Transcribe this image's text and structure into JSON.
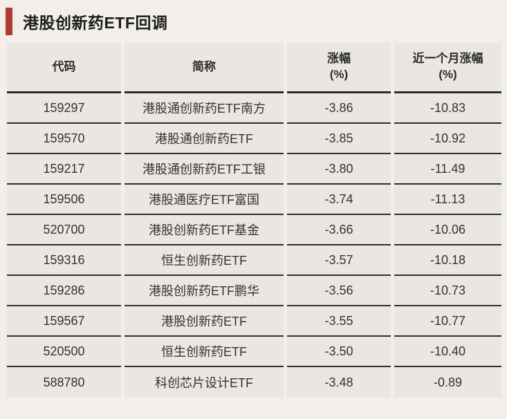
{
  "accent_color": "#b23a32",
  "chart_data": {
    "type": "table",
    "title": "港股创新药ETF回调",
    "columns": [
      "代码",
      "简称",
      "涨幅\n(%)",
      "近一个月涨幅\n(%)"
    ],
    "rows": [
      {
        "code": "159297",
        "name": "港股通创新药ETF南方",
        "change_pct": "-3.86",
        "monthly_change_pct": "-10.83"
      },
      {
        "code": "159570",
        "name": "港股通创新药ETF",
        "change_pct": "-3.85",
        "monthly_change_pct": "-10.92"
      },
      {
        "code": "159217",
        "name": "港股通创新药ETF工银",
        "change_pct": "-3.80",
        "monthly_change_pct": "-11.49"
      },
      {
        "code": "159506",
        "name": "港股通医疗ETF富国",
        "change_pct": "-3.74",
        "monthly_change_pct": "-11.13"
      },
      {
        "code": "520700",
        "name": "港股创新药ETF基金",
        "change_pct": "-3.66",
        "monthly_change_pct": "-10.06"
      },
      {
        "code": "159316",
        "name": "恒生创新药ETF",
        "change_pct": "-3.57",
        "monthly_change_pct": "-10.18"
      },
      {
        "code": "159286",
        "name": "港股创新药ETF鹏华",
        "change_pct": "-3.56",
        "monthly_change_pct": "-10.73"
      },
      {
        "code": "159567",
        "name": "港股创新药ETF",
        "change_pct": "-3.55",
        "monthly_change_pct": "-10.77"
      },
      {
        "code": "520500",
        "name": "恒生创新药ETF",
        "change_pct": "-3.50",
        "monthly_change_pct": "-10.40"
      },
      {
        "code": "588780",
        "name": "科创芯片设计ETF",
        "change_pct": "-3.48",
        "monthly_change_pct": "-0.89"
      }
    ]
  }
}
